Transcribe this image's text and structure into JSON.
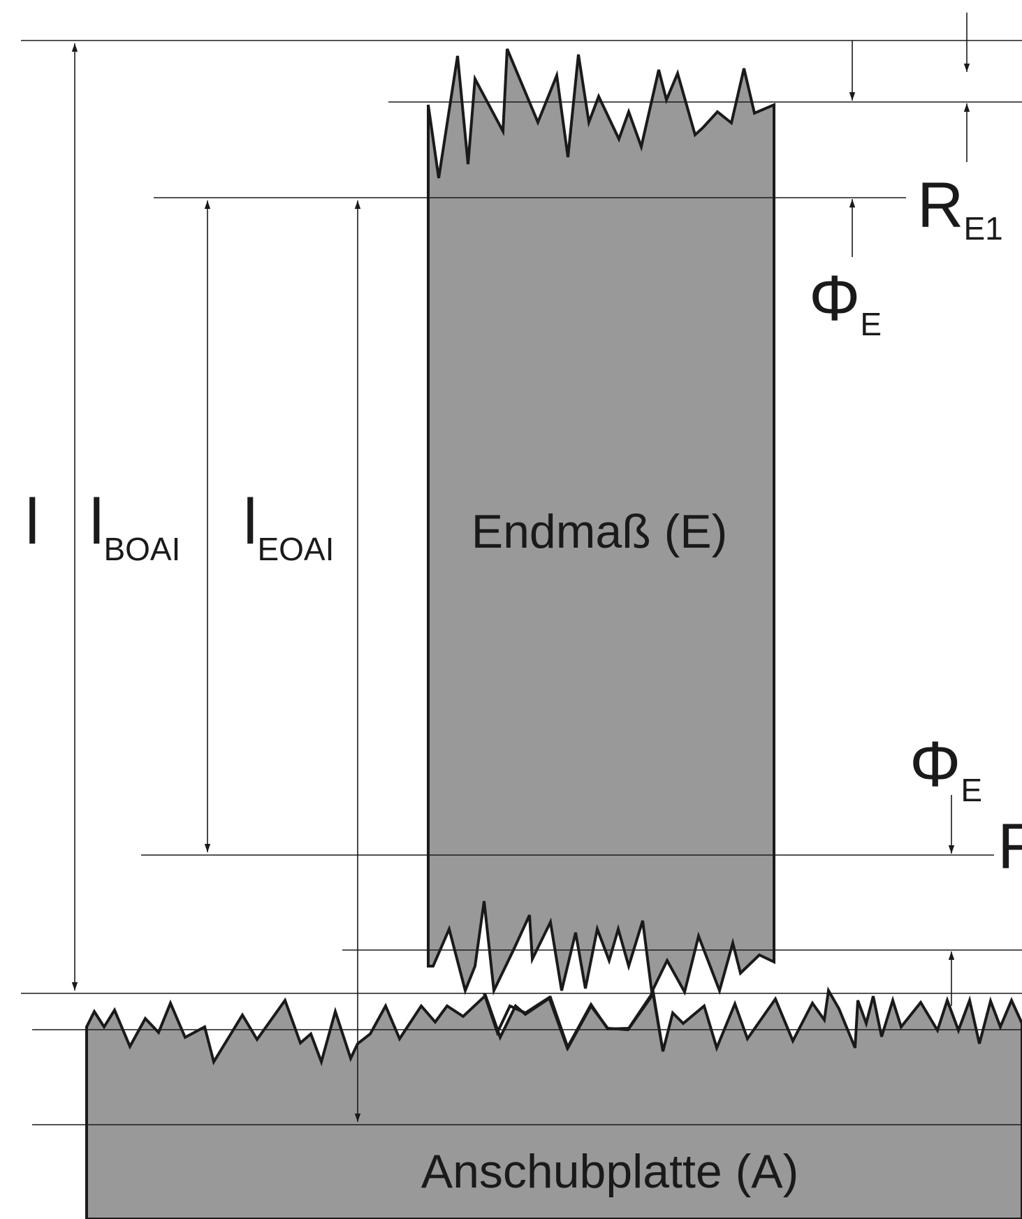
{
  "diagram": {
    "block_top_label": "Endmaß (E)",
    "block_bottom_label": "Anschubplatte (A)",
    "dim_total": {
      "main": "l",
      "sub": ""
    },
    "dim_boai": {
      "main": "l",
      "sub": "BOAI"
    },
    "dim_eoai": {
      "main": "l",
      "sub": "EOAI"
    },
    "roughness_top": {
      "main": "R",
      "sub": "E1"
    },
    "phase_top": {
      "main": "Φ",
      "sub": "E"
    },
    "phase_bottom": {
      "main": "Φ",
      "sub": "E"
    },
    "roughness_bottom": {
      "main": "R",
      "sub": ""
    }
  },
  "colors": {
    "block_fill": "#999999",
    "outline": "#1a1a1a",
    "background": "#ffffff"
  }
}
